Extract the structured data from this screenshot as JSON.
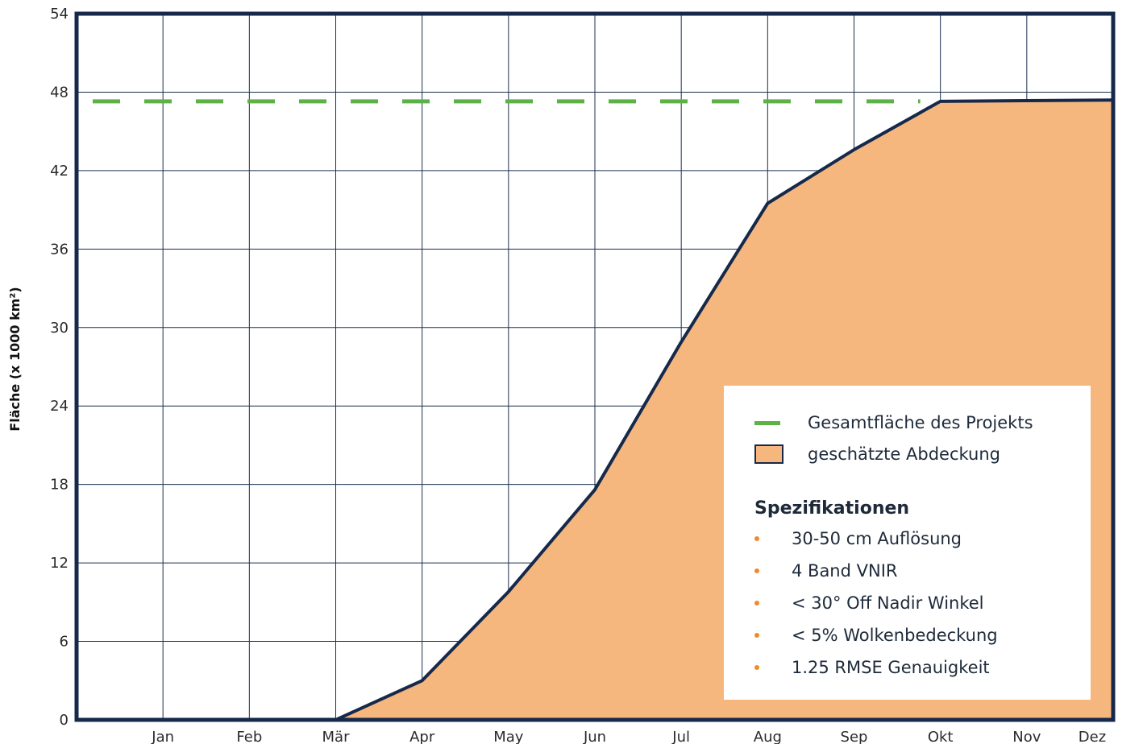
{
  "chart_data": {
    "type": "area",
    "title": "",
    "xlabel": "",
    "ylabel": "Fläche  (x 1000 km²)",
    "categories": [
      "",
      "Jan",
      "Feb",
      "Mär",
      "Apr",
      "May",
      "Jun",
      "Jul",
      "Aug",
      "Sep",
      "Okt",
      "Nov",
      "Dez"
    ],
    "y_ticks": [
      "0",
      "6",
      "12",
      "18",
      "24",
      "30",
      "36",
      "42",
      "48",
      "54"
    ],
    "ylim": [
      0,
      54
    ],
    "grid": true,
    "legend_position": "bottom-right",
    "series": [
      {
        "name": "geschätzte Abdeckung",
        "kind": "area",
        "values": [
          0,
          0,
          0,
          0,
          3,
          9.8,
          17.6,
          28.9,
          39.5,
          43.6,
          47.3,
          47.35,
          47.4
        ],
        "color": "#f6b77e",
        "line_color": "#16294a"
      },
      {
        "name": "Gesamtfläche des Projekts",
        "kind": "dashed-line",
        "value": 47.3,
        "color": "#5cb247"
      }
    ]
  },
  "legend": {
    "total_label": "Gesamtfläche des Projekts",
    "coverage_label": "geschätzte Abdeckung",
    "spec_title": "Spezifikationen",
    "specs": [
      "30-50 cm Auflösung",
      "4 Band VNIR",
      "< 30° Off Nadir Winkel",
      "< 5% Wolkenbedeckung",
      "1.25 RMSE Genauigkeit"
    ]
  }
}
